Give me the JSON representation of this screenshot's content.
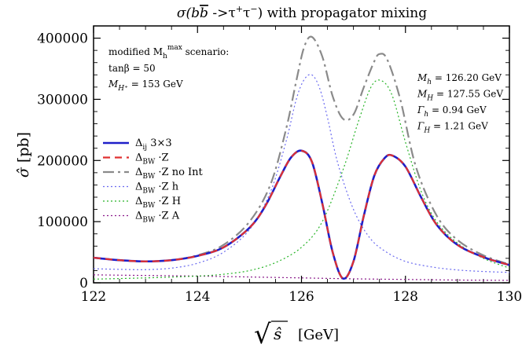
{
  "chart_data": {
    "type": "line",
    "title": "σ(bb̄ ->τ⁺τ⁻) with propagator mixing",
    "title_parts": {
      "prefix": "σ(b",
      "bbar": "b",
      "mid": " ->τ",
      "sup1": "+",
      "mid2": "τ",
      "sup2": "−",
      "suffix": ") with propagator mixing"
    },
    "xlabel": "√ŝ [GeV]",
    "xlabel_parts": {
      "sqrt": "√",
      "s": "ŝ",
      "unit": "[GeV]"
    },
    "ylabel": "σ̂ [pb]",
    "ylabel_parts": {
      "sigma": "σ̂",
      "unit": " [pb]"
    },
    "xlim": [
      122,
      130
    ],
    "ylim": [
      0,
      420000
    ],
    "xticks": [
      122,
      124,
      126,
      128,
      130
    ],
    "yticks": [
      0,
      100000,
      200000,
      300000,
      400000
    ],
    "annotations_left": {
      "scenario_line": "modified M",
      "scenario_sub": "h",
      "scenario_sup": "max",
      "scenario_end": " scenario:",
      "tanb": "tanβ = 50",
      "mhp_main": "M",
      "mhp_sub": "H⁺",
      "mhp_val": " = 153 GeV"
    },
    "annotations_right": [
      {
        "sym": "M",
        "sub": "h",
        "val": " = 126.20 GeV"
      },
      {
        "sym": "M",
        "sub": "H",
        "val": " = 127.55 GeV"
      },
      {
        "sym": "Γ",
        "sub": "h",
        "val": " = 0.94 GeV"
      },
      {
        "sym": "Γ",
        "sub": "H",
        "val": " = 1.21 GeV"
      }
    ],
    "legend": [
      {
        "main": "Δ",
        "sub": "ij",
        "rest": "  3×3"
      },
      {
        "main": "Δ",
        "sub": "BW",
        "rest": " ·Z"
      },
      {
        "main": "Δ",
        "sub": "BW",
        "rest": " ·Z no Int"
      },
      {
        "main": "Δ",
        "sub": "BW",
        "rest": " ·Z h"
      },
      {
        "main": "Δ",
        "sub": "BW",
        "rest": " ·Z H"
      },
      {
        "main": "Δ",
        "sub": "BW",
        "rest": " ·Z A"
      }
    ],
    "series": [
      {
        "name": "Δij 3×3",
        "color": "#1f1fc8",
        "dash": "",
        "width": 2.6,
        "x": [
          122,
          122.5,
          123,
          123.5,
          124,
          124.5,
          125,
          125.3,
          125.6,
          125.8,
          126,
          126.2,
          126.4,
          126.6,
          126.8,
          127,
          127.2,
          127.4,
          127.6,
          127.75,
          128,
          128.3,
          128.6,
          129,
          129.5,
          130
        ],
        "y": [
          41000,
          37000,
          35000,
          37000,
          44000,
          58000,
          90000,
          125000,
          175000,
          205000,
          216000,
          198000,
          130000,
          50000,
          7000,
          35000,
          110000,
          175000,
          204000,
          208000,
          190000,
          140000,
          95000,
          62000,
          42000,
          29000
        ]
      },
      {
        "name": "ΔBW·Z",
        "color": "#e03030",
        "dash": "9,6",
        "width": 2.2,
        "x": [
          122,
          122.5,
          123,
          123.5,
          124,
          124.5,
          125,
          125.3,
          125.6,
          125.8,
          126,
          126.2,
          126.4,
          126.6,
          126.8,
          127,
          127.2,
          127.4,
          127.6,
          127.75,
          128,
          128.3,
          128.6,
          129,
          129.5,
          130
        ],
        "y": [
          41000,
          37000,
          35000,
          37000,
          44000,
          58000,
          90000,
          125000,
          175000,
          205000,
          216000,
          198000,
          130000,
          50000,
          7000,
          35000,
          110000,
          175000,
          204000,
          208000,
          190000,
          140000,
          95000,
          62000,
          42000,
          29000
        ]
      },
      {
        "name": "ΔBW·Z no Int",
        "color": "#8a8a8a",
        "dash": "14,5,3,5",
        "width": 2.2,
        "x": [
          122,
          122.5,
          123,
          123.5,
          124,
          124.5,
          125,
          125.4,
          125.7,
          125.9,
          126.05,
          126.2,
          126.4,
          126.6,
          126.8,
          127,
          127.2,
          127.4,
          127.5,
          127.65,
          127.9,
          128.2,
          128.6,
          129,
          129.5,
          130
        ],
        "y": [
          41000,
          37000,
          35000,
          37000,
          45000,
          62000,
          100000,
          160000,
          250000,
          330000,
          385000,
          402000,
          370000,
          305000,
          268000,
          275000,
          320000,
          362000,
          374000,
          365000,
          300000,
          190000,
          110000,
          70000,
          45000,
          30000
        ]
      },
      {
        "name": "ΔBW·Z h",
        "color": "#6a6af0",
        "dash": "2,3",
        "width": 1.2,
        "x": [
          122,
          122.5,
          123,
          123.5,
          124,
          124.5,
          125,
          125.4,
          125.7,
          125.9,
          126.05,
          126.2,
          126.35,
          126.5,
          126.7,
          127,
          127.3,
          127.6,
          128,
          128.5,
          129,
          129.5,
          130
        ],
        "y": [
          23000,
          22000,
          21500,
          24000,
          32000,
          50000,
          87000,
          148000,
          230000,
          300000,
          332000,
          340000,
          318000,
          270000,
          195000,
          120000,
          75000,
          52000,
          35000,
          26000,
          21000,
          18500,
          17000
        ]
      },
      {
        "name": "ΔBW·Z H",
        "color": "#28b428",
        "dash": "2,3",
        "width": 1.2,
        "x": [
          122,
          123,
          124,
          124.5,
          125,
          125.5,
          126,
          126.4,
          126.8,
          127.1,
          127.35,
          127.55,
          127.75,
          128,
          128.3,
          128.6,
          129,
          129.5,
          130
        ],
        "y": [
          6000,
          8000,
          11000,
          14000,
          20000,
          33000,
          58000,
          100000,
          185000,
          265000,
          322000,
          330000,
          305000,
          230000,
          150000,
          100000,
          65000,
          40000,
          24000
        ]
      },
      {
        "name": "ΔBW·Z A",
        "color": "#8a1a8a",
        "dash": "2,3",
        "width": 1.2,
        "x": [
          122,
          123,
          124,
          125,
          126,
          127,
          128,
          129,
          130
        ],
        "y": [
          13000,
          12000,
          11000,
          9500,
          8000,
          6500,
          5500,
          4500,
          4000
        ]
      }
    ]
  }
}
